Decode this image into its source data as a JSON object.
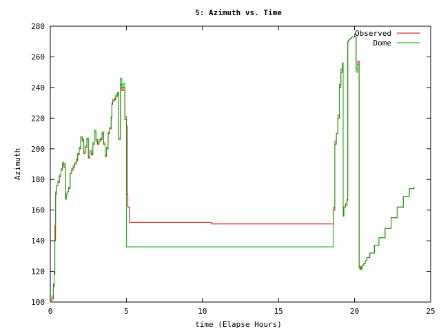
{
  "chart_data": {
    "type": "line",
    "title": "5: Azimuth vs. Time",
    "xlabel": "time (Elapse Hours)",
    "ylabel": "Azimuth",
    "xlim": [
      0,
      25
    ],
    "ylim": [
      100,
      280
    ],
    "xticks": [
      0,
      5,
      10,
      15,
      20,
      25
    ],
    "yticks": [
      100,
      120,
      140,
      160,
      180,
      200,
      220,
      240,
      260,
      280
    ],
    "grid": false,
    "legend_position": "top-right",
    "series": [
      {
        "name": "Observed",
        "color": "#cc0000",
        "x": [
          0,
          0.1,
          0.2,
          0.25,
          0.3,
          0.35,
          0.4,
          0.5,
          0.6,
          0.7,
          0.8,
          0.9,
          1.0,
          1.05,
          1.1,
          1.2,
          1.3,
          1.4,
          1.5,
          1.6,
          1.7,
          1.8,
          1.9,
          2.0,
          2.1,
          2.2,
          2.3,
          2.4,
          2.5,
          2.6,
          2.7,
          2.8,
          2.9,
          3.0,
          3.1,
          3.2,
          3.3,
          3.4,
          3.5,
          3.6,
          3.7,
          3.8,
          3.9,
          4.0,
          4.05,
          4.1,
          4.2,
          4.3,
          4.4,
          4.5,
          4.6,
          4.7,
          4.8,
          4.9,
          5.0,
          5.05,
          5.1,
          5.2,
          5.3,
          5.35,
          5.4,
          5.45,
          8.0,
          10.5,
          10.6,
          13.0,
          16.0,
          18.5,
          18.6,
          18.7,
          18.8,
          18.9,
          19.0,
          19.1,
          19.2,
          19.25,
          19.3,
          19.4,
          19.5,
          19.55,
          19.6,
          19.7,
          19.8,
          19.9,
          20.0,
          20.1,
          20.2,
          20.3,
          20.4,
          20.45,
          20.5,
          20.6,
          20.7,
          20.8,
          21.0,
          21.3,
          21.6,
          22.0,
          22.4,
          22.8,
          23.2,
          23.6,
          23.9
        ],
        "y": [
          100,
          102,
          110,
          118,
          140,
          170,
          176,
          178,
          182,
          186,
          190,
          188,
          168,
          170,
          172,
          174,
          184,
          186,
          188,
          190,
          192,
          196,
          200,
          207,
          205,
          197,
          201,
          206,
          194,
          198,
          196,
          203,
          211,
          205,
          203,
          205,
          206,
          210,
          203,
          195,
          200,
          210,
          213,
          220,
          229,
          231,
          232,
          234,
          236,
          207,
          242,
          238,
          240,
          219,
          215,
          170,
          162,
          152,
          152,
          152,
          152,
          152,
          152,
          152,
          151,
          151,
          151,
          151,
          160,
          203,
          210,
          220,
          240,
          250,
          254,
          157,
          162,
          164,
          167,
          270,
          271,
          272,
          273,
          273,
          273,
          252,
          257,
          123,
          122,
          123,
          124,
          125,
          127,
          129,
          132,
          137,
          142,
          148,
          155,
          162,
          169,
          174,
          175
        ]
      },
      {
        "name": "Dome",
        "color": "#00aa00",
        "x": [
          0,
          0.1,
          0.2,
          0.25,
          0.3,
          0.35,
          0.4,
          0.5,
          0.6,
          0.7,
          0.8,
          0.9,
          1.0,
          1.05,
          1.1,
          1.2,
          1.3,
          1.4,
          1.5,
          1.6,
          1.7,
          1.8,
          1.9,
          2.0,
          2.1,
          2.2,
          2.3,
          2.4,
          2.5,
          2.6,
          2.7,
          2.8,
          2.9,
          3.0,
          3.1,
          3.2,
          3.3,
          3.4,
          3.5,
          3.6,
          3.7,
          3.8,
          3.9,
          4.0,
          4.05,
          4.1,
          4.2,
          4.3,
          4.4,
          4.5,
          4.6,
          4.7,
          4.8,
          4.9,
          5.0,
          5.05,
          5.1,
          5.2,
          5.3,
          5.35,
          5.4,
          5.45,
          8.0,
          10.5,
          10.6,
          13.0,
          16.0,
          18.5,
          18.6,
          18.7,
          18.8,
          18.9,
          19.0,
          19.1,
          19.2,
          19.25,
          19.3,
          19.4,
          19.5,
          19.55,
          19.6,
          19.7,
          19.8,
          19.9,
          20.0,
          20.1,
          20.2,
          20.3,
          20.4,
          20.45,
          20.5,
          20.6,
          20.7,
          20.8,
          21.0,
          21.3,
          21.6,
          22.0,
          22.4,
          22.8,
          23.2,
          23.6,
          23.9
        ],
        "y": [
          101,
          104,
          112,
          120,
          150,
          172,
          176,
          179,
          183,
          187,
          191,
          190,
          167,
          170,
          172,
          175,
          184,
          187,
          189,
          191,
          193,
          197,
          201,
          208,
          206,
          198,
          202,
          207,
          195,
          199,
          197,
          204,
          212,
          206,
          204,
          206,
          207,
          211,
          204,
          196,
          201,
          211,
          214,
          221,
          230,
          232,
          233,
          235,
          237,
          206,
          246,
          240,
          243,
          221,
          136,
          136,
          136,
          136,
          136,
          136,
          136,
          136,
          136,
          136,
          136,
          136,
          136,
          136,
          162,
          205,
          210,
          222,
          242,
          252,
          256,
          156,
          162,
          163,
          166,
          270,
          271,
          272,
          273,
          273,
          275,
          250,
          255,
          122,
          121,
          122,
          124,
          125,
          127,
          129,
          132,
          137,
          142,
          148,
          155,
          162,
          169,
          174,
          175
        ]
      }
    ]
  }
}
